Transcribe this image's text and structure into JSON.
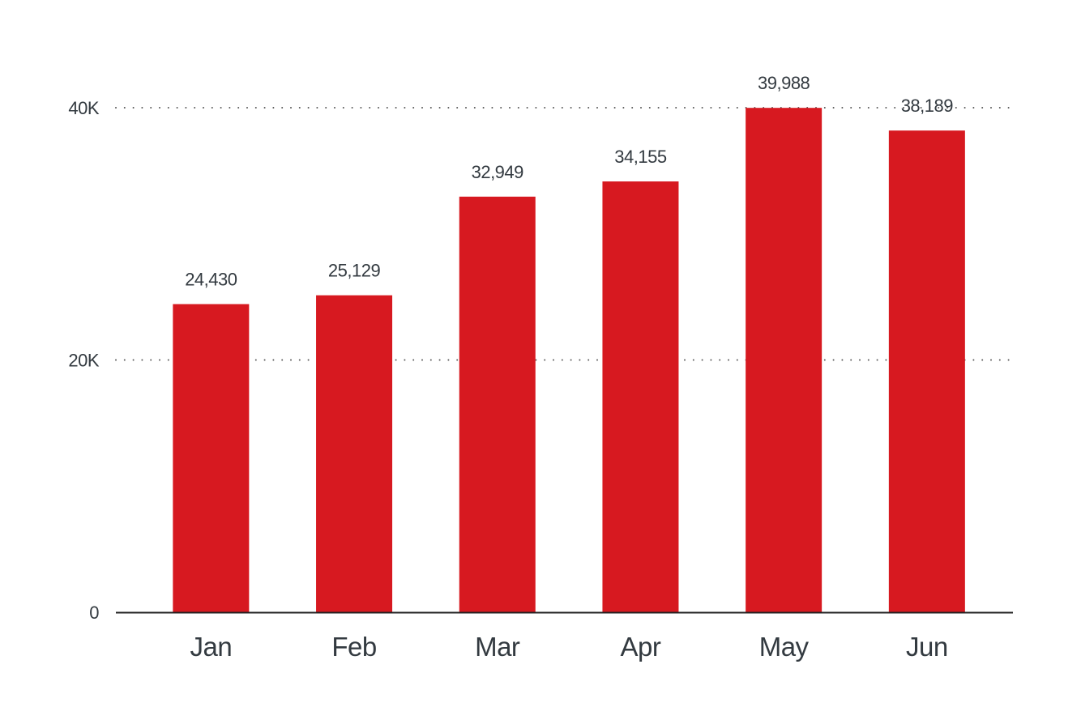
{
  "chart_data": {
    "type": "bar",
    "title": "",
    "xlabel": "",
    "ylabel": "",
    "categories": [
      "Jan",
      "Feb",
      "Mar",
      "Apr",
      "May",
      "Jun"
    ],
    "values": [
      24430,
      25129,
      32949,
      34155,
      39988,
      38189
    ],
    "value_labels": [
      "24,430",
      "25,129",
      "32,949",
      "34,155",
      "39,988",
      "38,189"
    ],
    "ylim": [
      0,
      40000
    ],
    "y_ticks": [
      0,
      20000,
      40000
    ],
    "y_tick_labels": [
      "0",
      "20K",
      "40K"
    ],
    "grid": true,
    "grid_style": "dotted",
    "legend": "none",
    "colors": {
      "bar": "#d71920",
      "text": "#333a40",
      "axis": "#222222",
      "grid": "#555555"
    }
  }
}
